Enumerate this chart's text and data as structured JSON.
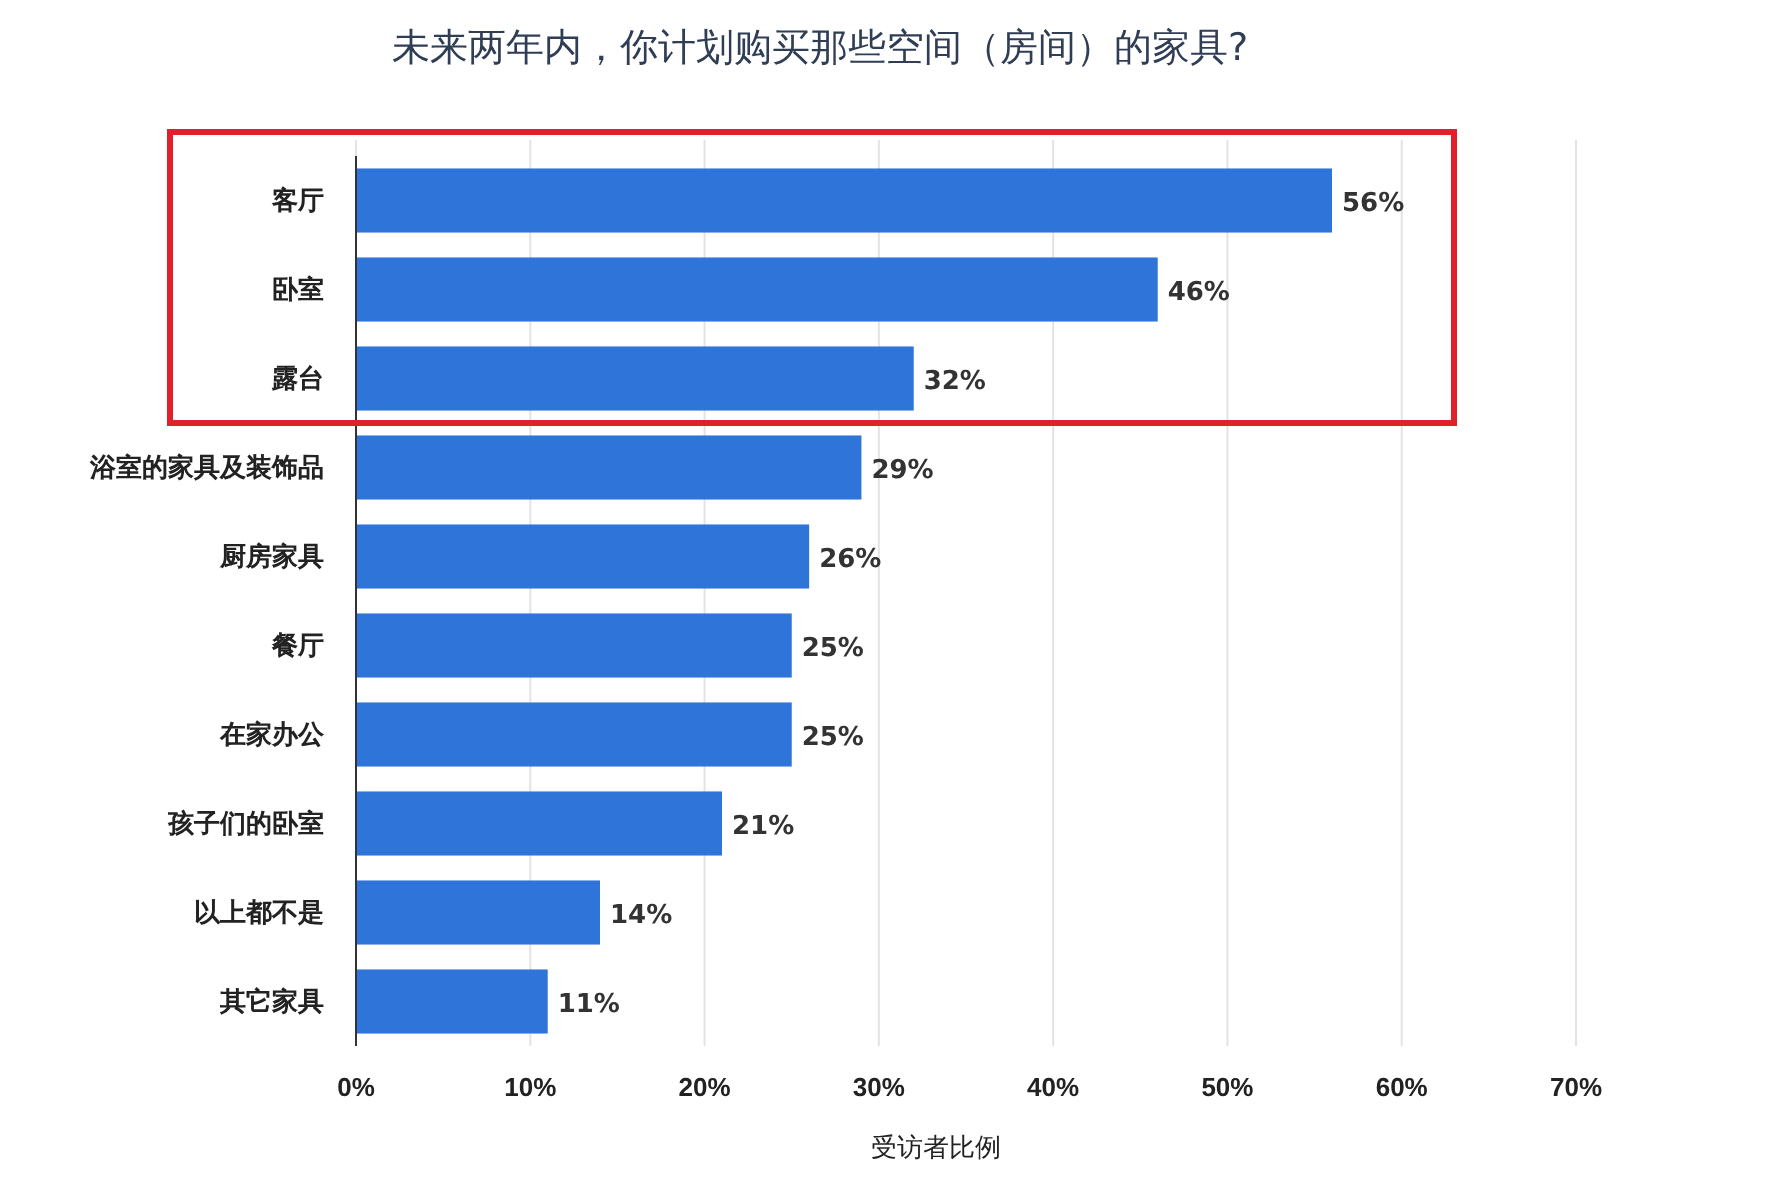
{
  "chart_data": {
    "type": "bar",
    "orientation": "horizontal",
    "title": "未来两年内，你计划购买那些空间（房间）的家具?",
    "xlabel": "受访者比例",
    "categories": [
      "客厅",
      "卧室",
      "露台",
      "浴室的家具及装饰品",
      "厨房家具",
      "餐厅",
      "在家办公",
      "孩子们的卧室",
      "以上都不是",
      "其它家具"
    ],
    "values": [
      56,
      46,
      32,
      29,
      26,
      25,
      25,
      21,
      14,
      11
    ],
    "value_labels": [
      "56%",
      "46%",
      "32%",
      "29%",
      "26%",
      "25%",
      "25%",
      "21%",
      "14%",
      "11%"
    ],
    "color": "#2f74d8",
    "xlim": [
      0,
      70
    ],
    "xticks": [
      {
        "value": 0,
        "label": "0%"
      },
      {
        "value": 10,
        "label": "10%"
      },
      {
        "value": 20,
        "label": "20%"
      },
      {
        "value": 30,
        "label": "30%"
      },
      {
        "value": 40,
        "label": "40%"
      },
      {
        "value": 50,
        "label": "50%"
      },
      {
        "value": 60,
        "label": "60%"
      },
      {
        "value": 70,
        "label": "70%"
      }
    ],
    "grid": "x"
  }
}
